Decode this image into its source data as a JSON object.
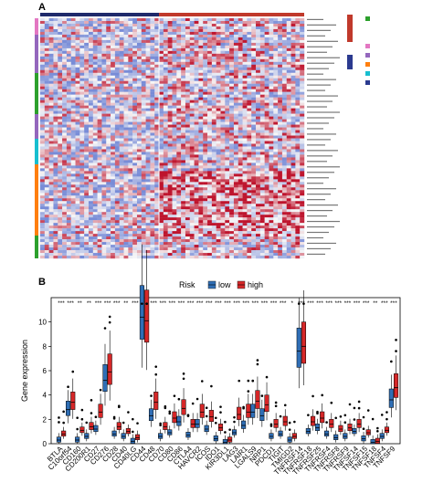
{
  "figure": {
    "panel_a_label": "A",
    "panel_b_label": "B"
  },
  "chart_data": [
    {
      "type": "heatmap",
      "title": "",
      "columns_groups": [
        "low",
        "high"
      ],
      "row_group_colors": [
        "#e377c2",
        "#2ca02c",
        "#9467bd",
        "#17becf",
        "#ff7f0e",
        "#2ca02c"
      ],
      "colors": {
        "low": "#3b4cc0",
        "mid": "#f7f7f7",
        "high": "#b40426",
        "top_low": "#1f2a6b",
        "top_high": "#c0392b"
      }
    },
    {
      "type": "box",
      "legend_title": "Risk",
      "legend": [
        {
          "name": "low",
          "color": "#2f6eb5"
        },
        {
          "name": "high",
          "color": "#d62728"
        }
      ],
      "ylabel": "Gene expression",
      "ylim": [
        0,
        12
      ],
      "yticks": [
        0,
        2,
        4,
        6,
        8,
        10
      ],
      "categories": [
        "BTLA",
        "C10orf54",
        "CD160",
        "CD200R1",
        "CD27",
        "CD276",
        "CD28",
        "CD40",
        "CD40LG",
        "CD44",
        "CD48",
        "CD70",
        "CD80",
        "CD86",
        "CTLA4",
        "HAVCR2",
        "ICOS",
        "IDO1",
        "KIR3DL1",
        "LAG3",
        "LAIR1",
        "LGALS9",
        "NRP1",
        "PDCD1",
        "TIGIT",
        "TMIGD2",
        "TNFRSF14",
        "TNFRSF18",
        "TNFRSF25",
        "TNFRSF4",
        "TNFRSF8",
        "TNFRSF9",
        "TNFSF14",
        "TNFSF15",
        "TNFSF18",
        "TNFSF4",
        "TNFSF9"
      ],
      "significance": [
        "***",
        "***",
        "**",
        "**",
        "***",
        "***",
        "***",
        "**",
        "***",
        "**",
        "***",
        "***",
        "***",
        "***",
        "***",
        "***",
        "***",
        "***",
        "***",
        "***",
        "***",
        "***",
        "***",
        "***",
        "***",
        "*",
        "***",
        "***",
        "***",
        "***",
        "***",
        "***",
        "***",
        "***",
        "**",
        "***",
        "***"
      ],
      "series": [
        {
          "name": "low",
          "medians": [
            0.3,
            2.8,
            0.3,
            0.6,
            1.2,
            5.2,
            0.8,
            0.6,
            0.2,
            10.4,
            2.3,
            0.6,
            0.9,
            1.8,
            0.7,
            1.6,
            1.2,
            0.4,
            0.1,
            0.9,
            1.5,
            2.6,
            2.3,
            0.6,
            0.8,
            0.3,
            7.6,
            1.0,
            1.3,
            0.8,
            0.5,
            0.6,
            1.0,
            0.4,
            0.1,
            0.6,
            3.6
          ]
        },
        {
          "name": "high",
          "medians": [
            0.8,
            3.4,
            1.1,
            1.4,
            2.6,
            5.9,
            1.4,
            1.0,
            0.5,
            10.1,
            3.4,
            1.4,
            2.1,
            2.9,
            1.6,
            2.6,
            2.2,
            1.3,
            0.3,
            2.4,
            2.6,
            3.5,
            3.2,
            1.6,
            1.8,
            0.6,
            8.0,
            1.8,
            2.1,
            1.6,
            1.2,
            1.3,
            1.6,
            0.9,
            0.2,
            1.1,
            4.6
          ]
        }
      ]
    }
  ]
}
